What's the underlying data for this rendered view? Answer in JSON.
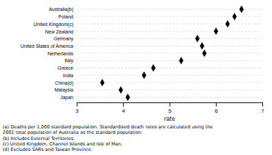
{
  "chart_data": {
    "type": "dot",
    "orientation": "horizontal",
    "categories": [
      "Japan",
      "Malaysia",
      "China(d)",
      "India",
      "Greece",
      "Italy",
      "Netherlands",
      "United States of America",
      "Germany",
      "New Zealand",
      "United Kingdom(c)",
      "Poland",
      "Australia(b)"
    ],
    "values": [
      4.1,
      3.95,
      3.55,
      4.45,
      4.65,
      5.25,
      5.75,
      5.7,
      5.6,
      6.0,
      6.25,
      6.4,
      6.55
    ],
    "x_label": "rate",
    "xlim": [
      3,
      7
    ],
    "xticks": [
      3,
      4,
      5,
      6,
      7
    ],
    "marker": "diamond",
    "color": "black",
    "grid": true,
    "annotations": [
      "(a)  Deaths per 1,000 standard population. Standardised death rates are calculated using the\n2001 total population of Australia as the standard population.",
      "(b)  Includes External Territories.",
      "(c)  United Kingdom, Channel Islands and Isle of Man.",
      "(d)  Excludes SARs and Taiwan Province."
    ]
  }
}
